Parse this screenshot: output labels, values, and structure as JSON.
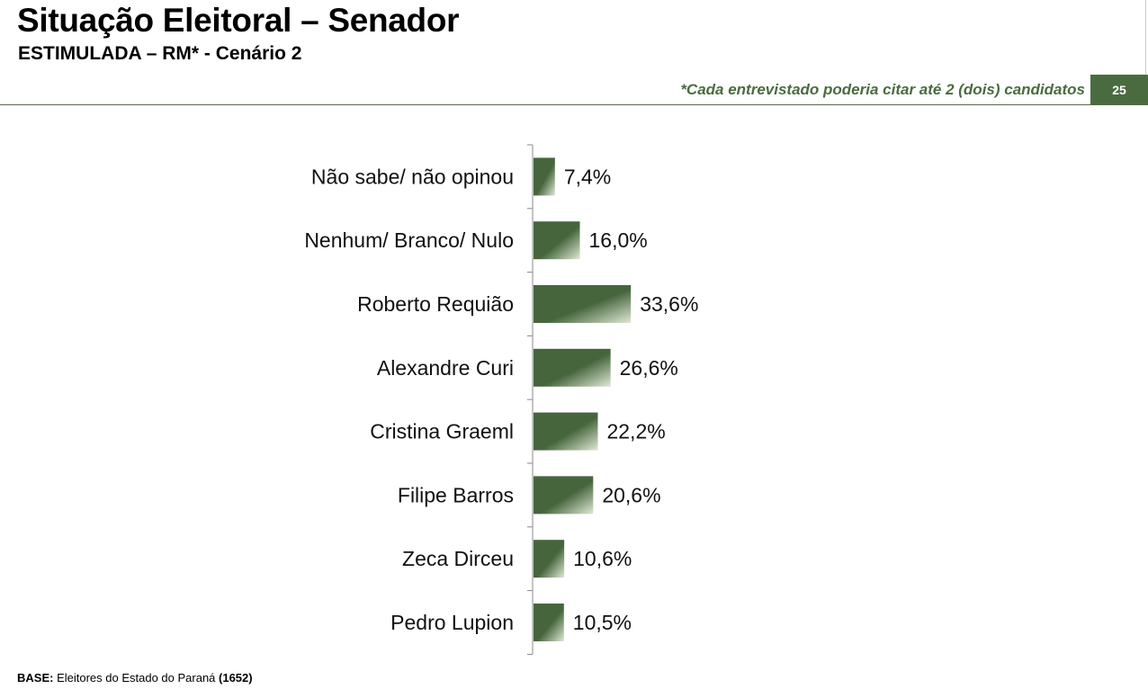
{
  "header": {
    "title": "Situação Eleitoral – Senador",
    "subtitle": "ESTIMULADA – RM* - Cenário 2",
    "note": "*Cada entrevistado poderia citar até 2 (dois) candidatos",
    "page_number": "25"
  },
  "footer": {
    "base_label": "BASE:",
    "base_text": " Eleitores do Estado do Paraná ",
    "base_n": "(1652)"
  },
  "colors": {
    "bar_dark": "#46653d",
    "bar_light": "#dfe9d6",
    "accent": "#4a6b3f"
  },
  "chart_data": {
    "type": "bar",
    "orientation": "horizontal",
    "categories": [
      "Não sabe/ não opinou",
      "Nenhum/ Branco/ Nulo",
      "Roberto Requião",
      "Alexandre Curi",
      "Cristina Graeml",
      "Filipe Barros",
      "Zeca Dirceu",
      "Pedro Lupion"
    ],
    "values": [
      7.4,
      16.0,
      33.6,
      26.6,
      22.2,
      20.6,
      10.6,
      10.5
    ],
    "data_labels": [
      "7,4%",
      "16,0%",
      "33,6%",
      "26,6%",
      "22,2%",
      "20,6%",
      "10,6%",
      "10,5%"
    ],
    "value_unit": "%",
    "title": "",
    "xlabel": "",
    "ylabel": "",
    "grid": false,
    "legend": "none"
  }
}
